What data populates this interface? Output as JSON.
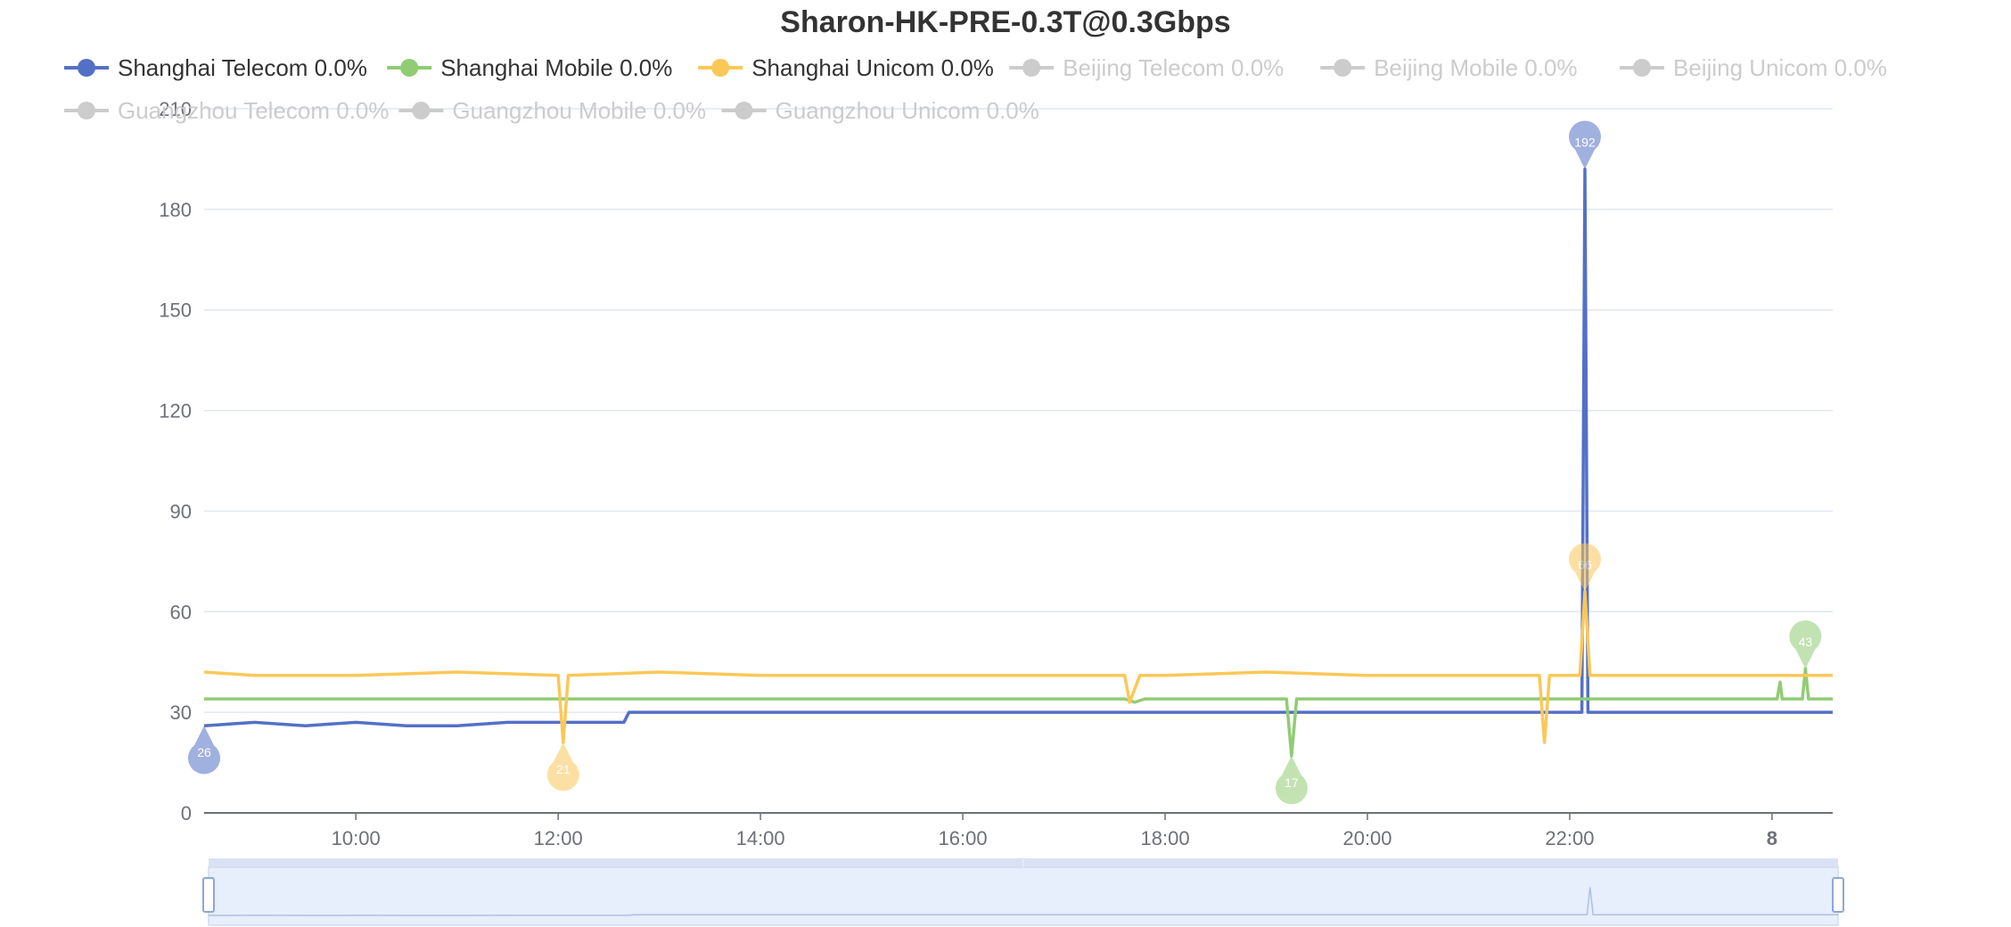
{
  "chart_data": {
    "type": "line",
    "title": "Sharon-HK-PRE-0.3T@0.3Gbps",
    "xlabel": "",
    "ylabel": "",
    "ylim": [
      0,
      210
    ],
    "y_ticks": [
      "0",
      "30",
      "60",
      "90",
      "120",
      "150",
      "180",
      "210"
    ],
    "x_range_hours": [
      8.5,
      24.6
    ],
    "x_ticks": [
      {
        "hour": 10,
        "label": "10:00",
        "bold": false
      },
      {
        "hour": 12,
        "label": "12:00",
        "bold": false
      },
      {
        "hour": 14,
        "label": "14:00",
        "bold": false
      },
      {
        "hour": 16,
        "label": "16:00",
        "bold": false
      },
      {
        "hour": 18,
        "label": "18:00",
        "bold": false
      },
      {
        "hour": 20,
        "label": "20:00",
        "bold": false
      },
      {
        "hour": 22,
        "label": "22:00",
        "bold": false
      },
      {
        "hour": 24,
        "label": "8",
        "bold": true
      }
    ],
    "grid": true,
    "legend_position": "top",
    "series": [
      {
        "name": "Shanghai Telecom 0.0%",
        "color": "#5470c6",
        "visible": true,
        "points": [
          [
            8.5,
            26
          ],
          [
            9.0,
            27
          ],
          [
            9.5,
            26
          ],
          [
            10.0,
            27
          ],
          [
            10.5,
            26
          ],
          [
            11.0,
            26
          ],
          [
            11.5,
            27
          ],
          [
            12.0,
            27
          ],
          [
            12.5,
            27
          ],
          [
            12.65,
            27
          ],
          [
            12.7,
            30
          ],
          [
            13.0,
            30
          ],
          [
            14.0,
            30
          ],
          [
            15.0,
            30
          ],
          [
            16.0,
            30
          ],
          [
            17.0,
            30
          ],
          [
            18.0,
            30
          ],
          [
            19.0,
            30
          ],
          [
            20.0,
            30
          ],
          [
            21.0,
            30
          ],
          [
            22.0,
            30
          ],
          [
            22.12,
            30
          ],
          [
            22.15,
            192
          ],
          [
            22.18,
            30
          ],
          [
            22.3,
            30
          ],
          [
            23.0,
            30
          ],
          [
            24.0,
            30
          ],
          [
            24.6,
            30
          ]
        ],
        "markers": [
          {
            "x": 8.5,
            "y": 26,
            "label": "26"
          },
          {
            "x": 22.15,
            "y": 192,
            "label": "192"
          }
        ]
      },
      {
        "name": "Shanghai Mobile 0.0%",
        "color": "#91cc75",
        "visible": true,
        "points": [
          [
            8.5,
            34
          ],
          [
            10.0,
            34
          ],
          [
            12.0,
            34
          ],
          [
            14.0,
            34
          ],
          [
            16.0,
            34
          ],
          [
            17.6,
            34
          ],
          [
            17.7,
            33
          ],
          [
            17.8,
            34
          ],
          [
            19.0,
            34
          ],
          [
            19.2,
            34
          ],
          [
            19.25,
            17
          ],
          [
            19.3,
            34
          ],
          [
            20.0,
            34
          ],
          [
            22.0,
            34
          ],
          [
            23.0,
            34
          ],
          [
            24.05,
            34
          ],
          [
            24.08,
            39
          ],
          [
            24.1,
            34
          ],
          [
            24.3,
            34
          ],
          [
            24.33,
            43
          ],
          [
            24.36,
            34
          ],
          [
            24.6,
            34
          ]
        ],
        "markers": [
          {
            "x": 19.25,
            "y": 17,
            "label": "17"
          },
          {
            "x": 24.33,
            "y": 43,
            "label": "43"
          }
        ]
      },
      {
        "name": "Shanghai Unicom 0.0%",
        "color": "#fac858",
        "visible": true,
        "points": [
          [
            8.5,
            42
          ],
          [
            9.0,
            41
          ],
          [
            10.0,
            41
          ],
          [
            11.0,
            42
          ],
          [
            12.0,
            41
          ],
          [
            12.05,
            21
          ],
          [
            12.1,
            41
          ],
          [
            13.0,
            42
          ],
          [
            14.0,
            41
          ],
          [
            15.0,
            41
          ],
          [
            16.0,
            41
          ],
          [
            17.0,
            41
          ],
          [
            17.6,
            41
          ],
          [
            17.65,
            33
          ],
          [
            17.75,
            41
          ],
          [
            18.0,
            41
          ],
          [
            19.0,
            42
          ],
          [
            20.0,
            41
          ],
          [
            21.0,
            41
          ],
          [
            21.7,
            41
          ],
          [
            21.75,
            21
          ],
          [
            21.8,
            41
          ],
          [
            22.1,
            41
          ],
          [
            22.15,
            66
          ],
          [
            22.2,
            41
          ],
          [
            23.0,
            41
          ],
          [
            24.0,
            41
          ],
          [
            24.6,
            41
          ]
        ],
        "markers": [
          {
            "x": 12.05,
            "y": 21,
            "label": "21"
          },
          {
            "x": 22.15,
            "y": 66,
            "label": "66"
          }
        ]
      },
      {
        "name": "Beijing Telecom 0.0%",
        "color": "#cccccc",
        "visible": false
      },
      {
        "name": "Beijing Mobile 0.0%",
        "color": "#cccccc",
        "visible": false
      },
      {
        "name": "Beijing Unicom 0.0%",
        "color": "#cccccc",
        "visible": false
      },
      {
        "name": "Guangzhou Telecom 0.0%",
        "color": "#cccccc",
        "visible": false
      },
      {
        "name": "Guangzhou Mobile 0.0%",
        "color": "#cccccc",
        "visible": false
      },
      {
        "name": "Guangzhou Unicom 0.0%",
        "color": "#cccccc",
        "visible": false
      }
    ],
    "data_zoom": {
      "start_percent": 0,
      "end_percent": 100,
      "handle_label": "⁞"
    }
  },
  "colors": {
    "grid": "#e0e6f1",
    "axis": "#6e7079",
    "legend_text_active": "#333333",
    "legend_text_inactive": "#cccccc",
    "zoom_fill": "#e7eefc",
    "zoom_border": "#d2dbee",
    "zoom_shadow_line": "#aebfe6"
  }
}
